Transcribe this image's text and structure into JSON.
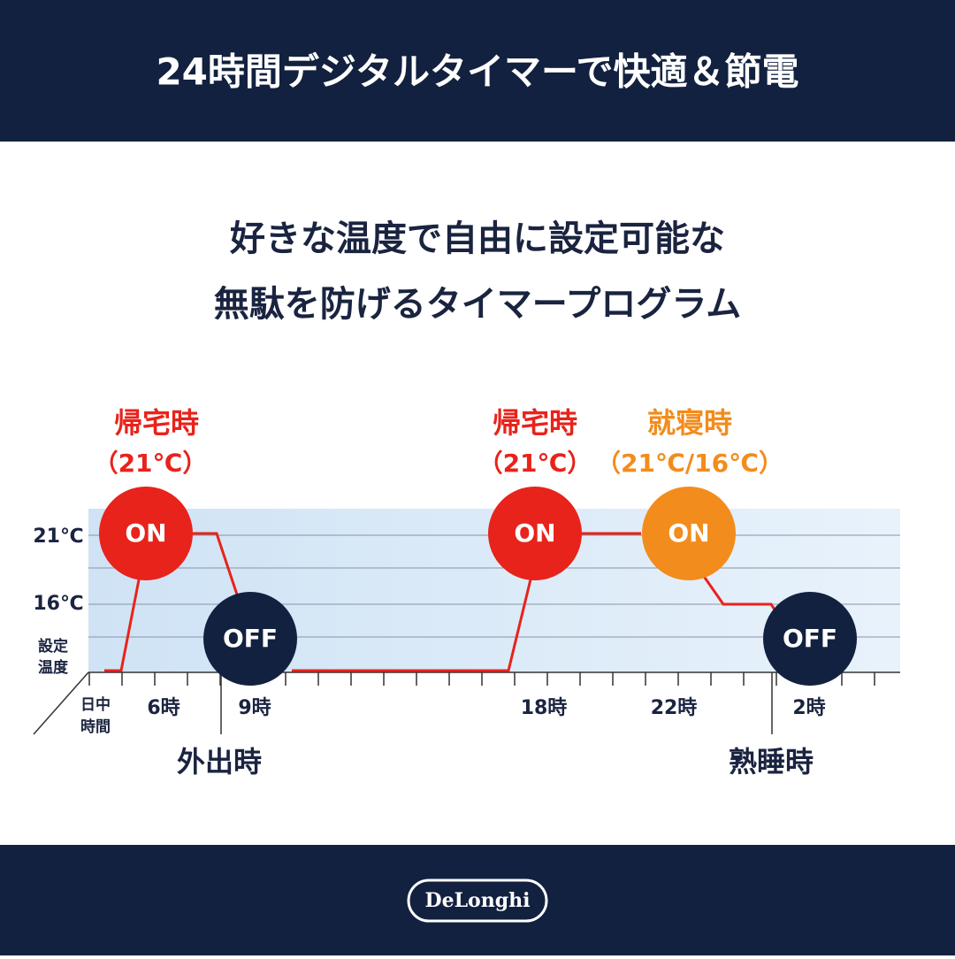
{
  "header": {
    "title": "24時間デジタルタイマーで快適＆節電"
  },
  "subtitle": {
    "lines": [
      "好きな温度で自由に設定可能な",
      "無駄を防げるタイマープログラム"
    ]
  },
  "diagram": {
    "y_labels": [
      "21℃",
      "16℃"
    ],
    "y_axis_label": [
      "設定",
      "温度"
    ],
    "x_axis_label": [
      "日中",
      "時間"
    ],
    "x_labels": [
      "6時",
      "9時",
      "18時",
      "22時",
      "2時"
    ],
    "events": [
      {
        "label": "帰宅時",
        "temp": "（21℃）"
      },
      {
        "label": "帰宅時",
        "temp": "（21℃）"
      },
      {
        "label": "就寝時",
        "temp": "（21℃/16℃）"
      }
    ],
    "states": [
      "ON",
      "OFF",
      "ON",
      "ON",
      "OFF"
    ],
    "phases": [
      "外出時",
      "熟睡時"
    ]
  },
  "footer": {
    "logo": "DeLonghi"
  }
}
